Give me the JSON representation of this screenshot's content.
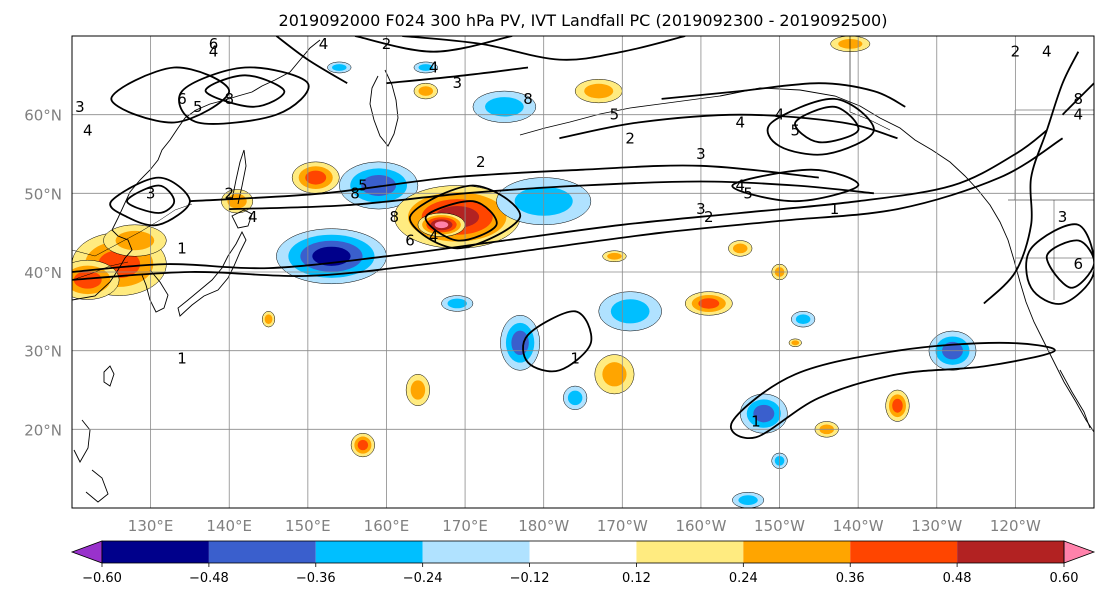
{
  "chart_data": {
    "type": "heatmap",
    "title": "2019092000 F024 300 hPa PV, IVT Landfall PC (2019092300 - 2019092500)",
    "projection": "plate-carree",
    "lon_range": [
      120,
      250
    ],
    "lat_range": [
      10,
      70
    ],
    "grid": true,
    "lat_ticks": [
      {
        "value": 20,
        "label": "20°N"
      },
      {
        "value": 30,
        "label": "30°N"
      },
      {
        "value": 40,
        "label": "40°N"
      },
      {
        "value": 50,
        "label": "50°N"
      },
      {
        "value": 60,
        "label": "60°N"
      }
    ],
    "lon_ticks": [
      {
        "value": 130,
        "label": "130°E"
      },
      {
        "value": 140,
        "label": "140°E"
      },
      {
        "value": 150,
        "label": "150°E"
      },
      {
        "value": 160,
        "label": "160°E"
      },
      {
        "value": 170,
        "label": "170°E"
      },
      {
        "value": 180,
        "label": "180°W"
      },
      {
        "value": 190,
        "label": "170°W"
      },
      {
        "value": 200,
        "label": "160°W"
      },
      {
        "value": 210,
        "label": "150°W"
      },
      {
        "value": 220,
        "label": "140°W"
      },
      {
        "value": 230,
        "label": "130°W"
      },
      {
        "value": 240,
        "label": "120°W"
      }
    ],
    "colorbar": {
      "position": "bottom",
      "extend": "both",
      "boundaries": [
        -0.72,
        -0.6,
        -0.48,
        -0.36,
        -0.24,
        -0.12,
        0.12,
        0.24,
        0.36,
        0.48,
        0.6,
        0.72
      ],
      "colors": [
        "#9932cc",
        "#00008b",
        "#3a5fcd",
        "#00bfff",
        "#b0e2ff",
        "#ffffff",
        "#ffeb80",
        "#ffa500",
        "#ff4500",
        "#b22222",
        "#ff82ab"
      ],
      "tick_values": [
        -0.6,
        -0.48,
        -0.36,
        -0.24,
        -0.12,
        0.12,
        0.24,
        0.36,
        0.48,
        0.6
      ],
      "tick_labels": [
        "−0.60",
        "−0.48",
        "−0.36",
        "−0.24",
        "−0.12",
        "0.12",
        "0.24",
        "0.36",
        "0.48",
        "0.60"
      ]
    },
    "shaded_features": [
      {
        "lon": 126,
        "lat": 41,
        "rx": 6,
        "ry": 4,
        "value": 0.42
      },
      {
        "lon": 122,
        "lat": 39,
        "rx": 4,
        "ry": 2.5,
        "value": 0.4
      },
      {
        "lon": 128,
        "lat": 44,
        "rx": 4,
        "ry": 2,
        "value": 0.3
      },
      {
        "lon": 141,
        "lat": 49,
        "rx": 2,
        "ry": 1.5,
        "value": 0.28
      },
      {
        "lon": 151,
        "lat": 52,
        "rx": 3,
        "ry": 2,
        "value": 0.4
      },
      {
        "lon": 153,
        "lat": 42,
        "rx": 7,
        "ry": 3.5,
        "value": -0.52
      },
      {
        "lon": 159,
        "lat": 51,
        "rx": 5,
        "ry": 3,
        "value": -0.46
      },
      {
        "lon": 169,
        "lat": 47,
        "rx": 8,
        "ry": 4,
        "value": 0.5
      },
      {
        "lon": 167,
        "lat": 46,
        "rx": 3,
        "ry": 1.5,
        "value": 0.66
      },
      {
        "lon": 175,
        "lat": 61,
        "rx": 4,
        "ry": 2,
        "value": -0.28
      },
      {
        "lon": 180,
        "lat": 49,
        "rx": 6,
        "ry": 3,
        "value": -0.3
      },
      {
        "lon": 187,
        "lat": 63,
        "rx": 3,
        "ry": 1.5,
        "value": 0.28
      },
      {
        "lon": 191,
        "lat": 35,
        "rx": 4,
        "ry": 2.5,
        "value": -0.3
      },
      {
        "lon": 201,
        "lat": 36,
        "rx": 3,
        "ry": 1.5,
        "value": 0.38
      },
      {
        "lon": 177,
        "lat": 31,
        "rx": 2.5,
        "ry": 3.5,
        "value": -0.44
      },
      {
        "lon": 169,
        "lat": 36,
        "rx": 2,
        "ry": 1,
        "value": -0.26
      },
      {
        "lon": 189,
        "lat": 27,
        "rx": 2.5,
        "ry": 2.5,
        "value": 0.28
      },
      {
        "lon": 184,
        "lat": 24,
        "rx": 1.5,
        "ry": 1.5,
        "value": -0.26
      },
      {
        "lon": 208,
        "lat": 22,
        "rx": 3,
        "ry": 2.5,
        "value": -0.4
      },
      {
        "lon": 232,
        "lat": 30,
        "rx": 3,
        "ry": 2.5,
        "value": -0.44
      },
      {
        "lon": 164,
        "lat": 25,
        "rx": 1.5,
        "ry": 2,
        "value": 0.3
      },
      {
        "lon": 157,
        "lat": 18,
        "rx": 1.5,
        "ry": 1.5,
        "value": 0.38
      },
      {
        "lon": 225,
        "lat": 23,
        "rx": 1.5,
        "ry": 2,
        "value": 0.38
      },
      {
        "lon": 216,
        "lat": 20,
        "rx": 1.5,
        "ry": 1,
        "value": 0.28
      },
      {
        "lon": 205,
        "lat": 43,
        "rx": 1.5,
        "ry": 1,
        "value": 0.28
      },
      {
        "lon": 210,
        "lat": 40,
        "rx": 1,
        "ry": 1,
        "value": 0.28
      },
      {
        "lon": 189,
        "lat": 42,
        "rx": 1.5,
        "ry": 0.7,
        "value": 0.26
      },
      {
        "lon": 213,
        "lat": 34,
        "rx": 1.5,
        "ry": 1,
        "value": -0.3
      },
      {
        "lon": 210,
        "lat": 16,
        "rx": 1,
        "ry": 1,
        "value": -0.28
      },
      {
        "lon": 206,
        "lat": 11,
        "rx": 2,
        "ry": 1,
        "value": -0.28
      },
      {
        "lon": 145,
        "lat": 34,
        "rx": 0.8,
        "ry": 1,
        "value": 0.28
      },
      {
        "lon": 154,
        "lat": 66,
        "rx": 1.5,
        "ry": 0.7,
        "value": -0.26
      },
      {
        "lon": 165,
        "lat": 66,
        "rx": 1.5,
        "ry": 0.7,
        "value": -0.26
      },
      {
        "lon": 219,
        "lat": 69,
        "rx": 2.5,
        "ry": 1,
        "value": 0.3
      },
      {
        "lon": 165,
        "lat": 63,
        "rx": 1.5,
        "ry": 1,
        "value": 0.28
      },
      {
        "lon": 212,
        "lat": 31,
        "rx": 0.8,
        "ry": 0.5,
        "value": 0.26
      }
    ],
    "contours": [
      {
        "points": [
          [
            120,
            40
          ],
          [
            132,
            41
          ],
          [
            145,
            40.5
          ],
          [
            160,
            42
          ],
          [
            175,
            44
          ],
          [
            190,
            46
          ],
          [
            205,
            47.5
          ],
          [
            220,
            49
          ],
          [
            232,
            51
          ],
          [
            240,
            55
          ],
          [
            244,
            58
          ]
        ]
      },
      {
        "points": [
          [
            120,
            39
          ],
          [
            135,
            40
          ],
          [
            150,
            39.5
          ],
          [
            165,
            41
          ],
          [
            180,
            43
          ],
          [
            195,
            45
          ],
          [
            210,
            46.5
          ],
          [
            225,
            48
          ],
          [
            238,
            52
          ],
          [
            246,
            57
          ]
        ]
      },
      {
        "points": [
          [
            140,
            48
          ],
          [
            155,
            48.5
          ],
          [
            170,
            50
          ],
          [
            185,
            51
          ],
          [
            200,
            51.5
          ],
          [
            212,
            51
          ],
          [
            222,
            50
          ]
        ]
      },
      {
        "points": [
          [
            135,
            49
          ],
          [
            152,
            50
          ],
          [
            168,
            52
          ],
          [
            185,
            53
          ],
          [
            200,
            53.5
          ],
          [
            215,
            52
          ]
        ]
      },
      {
        "points": [
          [
            182,
            57
          ],
          [
            192,
            59
          ],
          [
            205,
            60
          ],
          [
            218,
            59
          ],
          [
            225,
            57
          ]
        ]
      },
      {
        "points": [
          [
            195,
            62
          ],
          [
            205,
            63
          ],
          [
            215,
            64
          ],
          [
            222,
            63
          ],
          [
            226,
            61
          ]
        ]
      },
      {
        "closed": true,
        "points": [
          [
            125,
            49
          ],
          [
            131,
            52
          ],
          [
            135,
            49
          ],
          [
            131,
            46
          ],
          [
            127,
            47
          ]
        ]
      },
      {
        "closed": true,
        "points": [
          [
            127,
            49
          ],
          [
            131,
            51
          ],
          [
            133,
            49
          ],
          [
            131,
            47.5
          ]
        ]
      },
      {
        "closed": true,
        "points": [
          [
            134,
            63
          ],
          [
            142,
            66
          ],
          [
            150,
            64
          ],
          [
            146,
            60
          ],
          [
            136,
            59
          ]
        ]
      },
      {
        "closed": true,
        "points": [
          [
            137,
            63
          ],
          [
            142,
            65
          ],
          [
            147,
            63
          ],
          [
            143,
            61
          ]
        ]
      },
      {
        "closed": true,
        "points": [
          [
            125,
            62
          ],
          [
            133,
            66
          ],
          [
            140,
            63
          ],
          [
            133,
            59
          ]
        ]
      },
      {
        "closed": true,
        "points": [
          [
            209,
            59
          ],
          [
            217,
            62
          ],
          [
            222,
            58
          ],
          [
            216,
            55
          ],
          [
            210,
            56
          ]
        ]
      },
      {
        "closed": true,
        "points": [
          [
            212,
            59
          ],
          [
            217,
            61
          ],
          [
            220,
            58
          ],
          [
            215,
            56.5
          ]
        ]
      },
      {
        "closed": true,
        "points": [
          [
            204,
            51
          ],
          [
            214,
            53
          ],
          [
            220,
            51
          ],
          [
            212,
            49
          ]
        ]
      },
      {
        "closed": true,
        "points": [
          [
            165,
            47
          ],
          [
            171,
            49
          ],
          [
            174,
            46
          ],
          [
            169,
            44
          ]
        ]
      },
      {
        "closed": true,
        "points": [
          [
            163,
            47
          ],
          [
            171,
            51
          ],
          [
            177,
            47
          ],
          [
            169,
            43
          ]
        ]
      },
      {
        "closed": true,
        "points": [
          [
            178,
            32
          ],
          [
            184,
            35
          ],
          [
            186,
            31
          ],
          [
            182,
            27.5
          ],
          [
            178,
            28.5
          ]
        ]
      },
      {
        "closed": true,
        "points": [
          [
            204,
            21
          ],
          [
            212,
            27
          ],
          [
            225,
            30
          ],
          [
            238,
            31
          ],
          [
            245,
            30
          ],
          [
            236,
            28
          ],
          [
            225,
            27
          ],
          [
            215,
            24
          ],
          [
            207,
            19
          ]
        ]
      },
      {
        "closed": true,
        "points": [
          [
            244,
            42
          ],
          [
            248,
            44
          ],
          [
            250,
            41
          ],
          [
            247,
            38
          ]
        ]
      },
      {
        "closed": true,
        "points": [
          [
            242,
            43
          ],
          [
            248,
            46
          ],
          [
            250,
            40
          ],
          [
            246,
            36
          ],
          [
            242,
            38
          ]
        ]
      },
      {
        "points": [
          [
            236,
            36
          ],
          [
            240,
            40
          ],
          [
            242,
            46
          ],
          [
            242,
            52
          ],
          [
            244,
            58
          ],
          [
            246,
            64
          ],
          [
            248,
            68
          ]
        ]
      },
      {
        "points": [
          [
            246,
            60
          ],
          [
            248,
            62
          ],
          [
            250,
            64
          ]
        ]
      },
      {
        "points": [
          [
            162,
            70
          ],
          [
            172,
            69
          ],
          [
            182,
            67
          ],
          [
            190,
            68
          ],
          [
            198,
            70
          ]
        ]
      },
      {
        "points": [
          [
            146,
            70
          ],
          [
            150,
            67
          ],
          [
            155,
            64
          ]
        ]
      },
      {
        "points": [
          [
            156,
            70
          ],
          [
            166,
            68
          ],
          [
            176,
            70
          ]
        ]
      },
      {
        "points": [
          [
            160,
            64
          ],
          [
            170,
            65
          ],
          [
            178,
            66
          ]
        ]
      }
    ],
    "contour_labels": [
      {
        "lon": 130,
        "lat": 50,
        "text": "3"
      },
      {
        "lon": 134,
        "lat": 43,
        "text": "1"
      },
      {
        "lon": 138,
        "lat": 68,
        "text": "4"
      },
      {
        "lon": 140,
        "lat": 62,
        "text": "8"
      },
      {
        "lon": 136,
        "lat": 61,
        "text": "5"
      },
      {
        "lon": 134,
        "lat": 62,
        "text": "6"
      },
      {
        "lon": 122,
        "lat": 58,
        "text": "4"
      },
      {
        "lon": 121,
        "lat": 61,
        "text": "3"
      },
      {
        "lon": 143,
        "lat": 47,
        "text": "4"
      },
      {
        "lon": 140,
        "lat": 50,
        "text": "2"
      },
      {
        "lon": 152,
        "lat": 69,
        "text": "4"
      },
      {
        "lon": 160,
        "lat": 69,
        "text": "2"
      },
      {
        "lon": 166,
        "lat": 66,
        "text": "4"
      },
      {
        "lon": 169,
        "lat": 64,
        "text": "3"
      },
      {
        "lon": 178,
        "lat": 62,
        "text": "8"
      },
      {
        "lon": 191,
        "lat": 57,
        "text": "2"
      },
      {
        "lon": 189,
        "lat": 60,
        "text": "5"
      },
      {
        "lon": 200,
        "lat": 55,
        "text": "3"
      },
      {
        "lon": 205,
        "lat": 59,
        "text": "4"
      },
      {
        "lon": 210,
        "lat": 60,
        "text": "4"
      },
      {
        "lon": 212,
        "lat": 58,
        "text": "5"
      },
      {
        "lon": 205,
        "lat": 51,
        "text": "4"
      },
      {
        "lon": 206,
        "lat": 50,
        "text": "5"
      },
      {
        "lon": 200,
        "lat": 48,
        "text": "3"
      },
      {
        "lon": 201,
        "lat": 47,
        "text": "2"
      },
      {
        "lon": 217,
        "lat": 48,
        "text": "1"
      },
      {
        "lon": 157,
        "lat": 51,
        "text": "5"
      },
      {
        "lon": 156,
        "lat": 50,
        "text": "8"
      },
      {
        "lon": 161,
        "lat": 47,
        "text": "8"
      },
      {
        "lon": 163,
        "lat": 44,
        "text": "6"
      },
      {
        "lon": 166,
        "lat": 44.5,
        "text": "4"
      },
      {
        "lon": 172,
        "lat": 54,
        "text": "2"
      },
      {
        "lon": 184,
        "lat": 29,
        "text": "1"
      },
      {
        "lon": 134,
        "lat": 29,
        "text": "1"
      },
      {
        "lon": 207,
        "lat": 21,
        "text": "1"
      },
      {
        "lon": 246,
        "lat": 47,
        "text": "3"
      },
      {
        "lon": 248,
        "lat": 41,
        "text": "6"
      },
      {
        "lon": 248,
        "lat": 60,
        "text": "4"
      },
      {
        "lon": 248,
        "lat": 62,
        "text": "8"
      },
      {
        "lon": 240,
        "lat": 68,
        "text": "2"
      },
      {
        "lon": 244,
        "lat": 68,
        "text": "4"
      },
      {
        "lon": 138,
        "lat": 69,
        "text": "6"
      }
    ]
  }
}
